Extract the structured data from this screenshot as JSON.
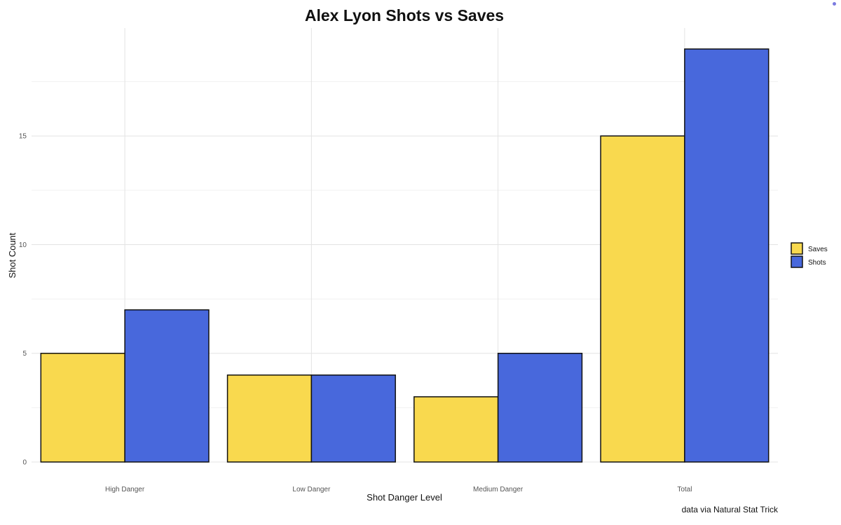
{
  "chart_data": {
    "type": "bar",
    "title": "Alex Lyon Shots vs Saves",
    "xlabel": "Shot Danger Level",
    "ylabel": "Shot Count",
    "categories": [
      "High Danger",
      "Low Danger",
      "Medium Danger",
      "Total"
    ],
    "series": [
      {
        "name": "Saves",
        "values": [
          5,
          4,
          3,
          15
        ],
        "color": "#F9D94E"
      },
      {
        "name": "Shots",
        "values": [
          7,
          4,
          5,
          19
        ],
        "color": "#4868DC"
      }
    ],
    "ylim": [
      0,
      19
    ],
    "yticks": [
      0,
      5,
      10,
      15
    ],
    "ytick_labels": [
      "0",
      "5",
      "10",
      "15"
    ],
    "grid": true,
    "legend_position": "right",
    "caption": "data via Natural Stat Trick"
  }
}
